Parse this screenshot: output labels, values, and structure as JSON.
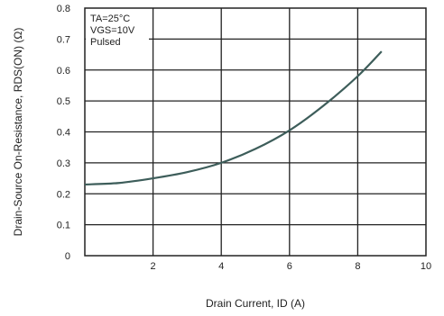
{
  "chart_data": {
    "type": "line",
    "title": "",
    "xlabel": "Drain Current, ID (A)",
    "ylabel": "Drain-Source On-Resistance, RDS(ON) (Ω)",
    "xlim": [
      0,
      10
    ],
    "ylim": [
      0,
      0.8
    ],
    "x_ticks": [
      {
        "value": 2,
        "label": "2"
      },
      {
        "value": 4,
        "label": "4"
      },
      {
        "value": 6,
        "label": "6"
      },
      {
        "value": 8,
        "label": "8"
      },
      {
        "value": 10,
        "label": "10"
      }
    ],
    "y_ticks": [
      {
        "value": 0,
        "label": "0"
      },
      {
        "value": 0.1,
        "label": "0.1"
      },
      {
        "value": 0.2,
        "label": "0.2"
      },
      {
        "value": 0.3,
        "label": "0.3"
      },
      {
        "value": 0.4,
        "label": "0.4"
      },
      {
        "value": 0.5,
        "label": "0.5"
      },
      {
        "value": 0.6,
        "label": "0.6"
      },
      {
        "value": 0.7,
        "label": "0.7"
      },
      {
        "value": 0.8,
        "label": "0.8"
      }
    ],
    "grid": true,
    "annotations": [
      "TA=25°C",
      "VGS=10V",
      "Pulsed"
    ],
    "series": [
      {
        "color": "#3d5d5a",
        "x": [
          0,
          1,
          2,
          3,
          4,
          5,
          6,
          7,
          8,
          8.7
        ],
        "y": [
          0.23,
          0.235,
          0.25,
          0.27,
          0.3,
          0.345,
          0.405,
          0.485,
          0.58,
          0.66
        ]
      }
    ]
  }
}
